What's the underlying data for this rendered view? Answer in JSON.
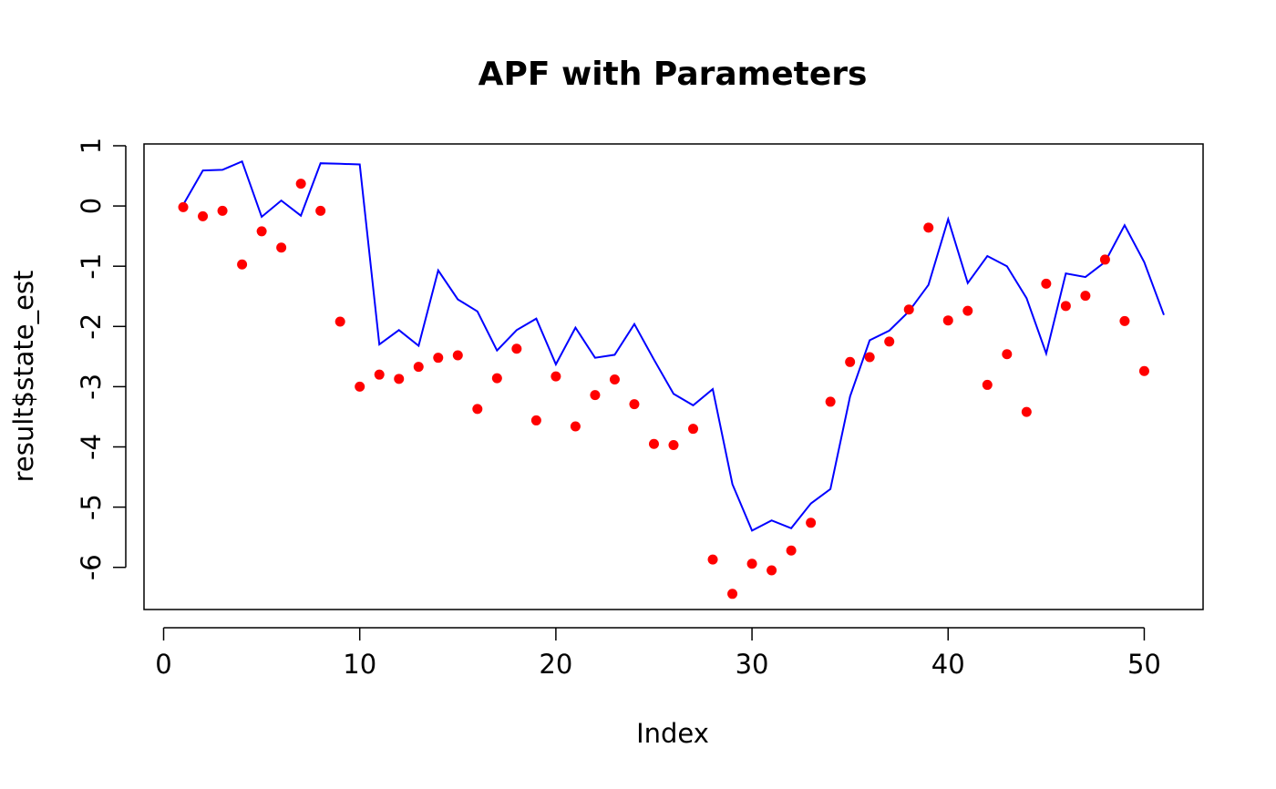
{
  "chart_data": {
    "type": "line",
    "title": "APF with Parameters",
    "xlabel": "Index",
    "ylabel": "result$state_est",
    "xlim": [
      -1,
      53
    ],
    "ylim": [
      -6.7,
      1.03
    ],
    "x_ticks": [
      0,
      10,
      20,
      30,
      40,
      50
    ],
    "y_ticks": [
      1,
      0,
      -1,
      -2,
      -3,
      -4,
      -5,
      -6
    ],
    "grid": false,
    "legend": "none",
    "colors": {
      "line": "#0000ff",
      "points": "#ff0000",
      "axes": "#000000"
    },
    "series": [
      {
        "style": "line",
        "color": "#0000ff",
        "x": [
          1,
          2,
          3,
          4,
          5,
          6,
          7,
          8,
          9,
          10,
          11,
          12,
          13,
          14,
          15,
          16,
          17,
          18,
          19,
          20,
          21,
          22,
          23,
          24,
          25,
          26,
          27,
          28,
          29,
          30,
          31,
          32,
          33,
          34,
          35,
          36,
          37,
          38,
          39,
          40,
          41,
          42,
          43,
          44,
          45,
          46,
          47,
          48,
          49,
          50,
          51
        ],
        "values": [
          0.02,
          0.59,
          0.6,
          0.74,
          -0.18,
          0.09,
          -0.16,
          0.71,
          0.7,
          0.69,
          -2.3,
          -2.06,
          -2.32,
          -1.07,
          -1.55,
          -1.75,
          -2.4,
          -2.06,
          -1.87,
          -2.63,
          -2.02,
          -2.52,
          -2.47,
          -1.96,
          -2.55,
          -3.12,
          -3.31,
          -3.04,
          -4.62,
          -5.39,
          -5.22,
          -5.35,
          -4.94,
          -4.7,
          -3.16,
          -2.23,
          -2.07,
          -1.75,
          -1.31,
          -0.22,
          -1.28,
          -0.83,
          -1.0,
          -1.53,
          -2.45,
          -1.12,
          -1.18,
          -0.93,
          -0.32,
          -0.93,
          -1.81
        ]
      },
      {
        "style": "points",
        "color": "#ff0000",
        "x": [
          1,
          2,
          3,
          4,
          5,
          6,
          7,
          8,
          9,
          10,
          11,
          12,
          13,
          14,
          15,
          16,
          17,
          18,
          19,
          20,
          21,
          22,
          23,
          24,
          25,
          26,
          27,
          28,
          29,
          30,
          31,
          32,
          33,
          34,
          35,
          36,
          37,
          38,
          39,
          40,
          41,
          42,
          43,
          44,
          45,
          46,
          47,
          48,
          49,
          50
        ],
        "values": [
          -0.02,
          -0.17,
          -0.08,
          -0.97,
          -0.42,
          -0.69,
          0.37,
          -0.08,
          -1.92,
          -3.0,
          -2.8,
          -2.87,
          -2.67,
          -2.52,
          -2.48,
          -3.37,
          -2.86,
          -2.37,
          -3.56,
          -2.83,
          -3.66,
          -3.14,
          -2.88,
          -3.29,
          -3.95,
          -3.97,
          -3.7,
          -5.87,
          -6.44,
          -5.94,
          -6.05,
          -5.72,
          -5.26,
          -3.25,
          -2.59,
          -2.51,
          -2.25,
          -1.72,
          -0.36,
          -1.9,
          -1.74,
          -2.97,
          -2.46,
          -3.42,
          -1.29,
          -1.66,
          -1.49,
          -0.89,
          -1.91,
          -2.74
        ]
      }
    ]
  }
}
